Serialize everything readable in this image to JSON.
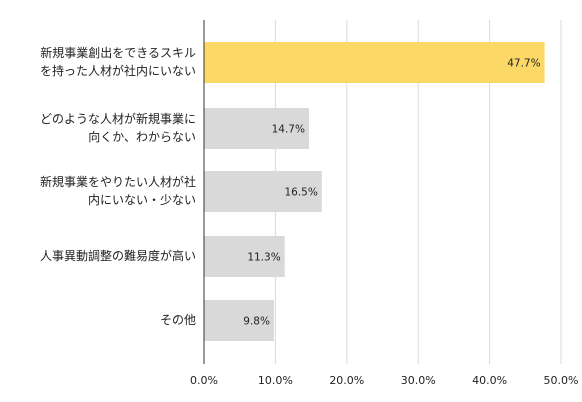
{
  "chart_data": {
    "type": "bar",
    "orientation": "horizontal",
    "categories": [
      [
        "新規事業創出をできるスキル",
        "を持った人材が社内にいない"
      ],
      [
        "どのような人材が新規事業に",
        "向くか、わからない"
      ],
      [
        "新規事業をやりたい人材が社",
        "内にいない・少ない"
      ],
      [
        "人事異動調整の難易度が高い"
      ],
      [
        "その他"
      ]
    ],
    "values": [
      47.7,
      14.7,
      16.5,
      11.3,
      9.8
    ],
    "value_labels": [
      "47.7%",
      "14.7%",
      "16.5%",
      "11.3%",
      "9.8%"
    ],
    "xlim": [
      0,
      50
    ],
    "x_ticks": [
      0,
      10,
      20,
      30,
      40,
      50
    ],
    "x_tick_labels": [
      "0.0%",
      "10.0%",
      "20.0%",
      "30.0%",
      "40.0%",
      "50.0%"
    ],
    "grid": "vertical",
    "colors": {
      "highlight": "#FCD867",
      "default": "#D9D9D9",
      "grid": "#DADADA",
      "axis": "#333333"
    },
    "highlight_index": 0
  }
}
